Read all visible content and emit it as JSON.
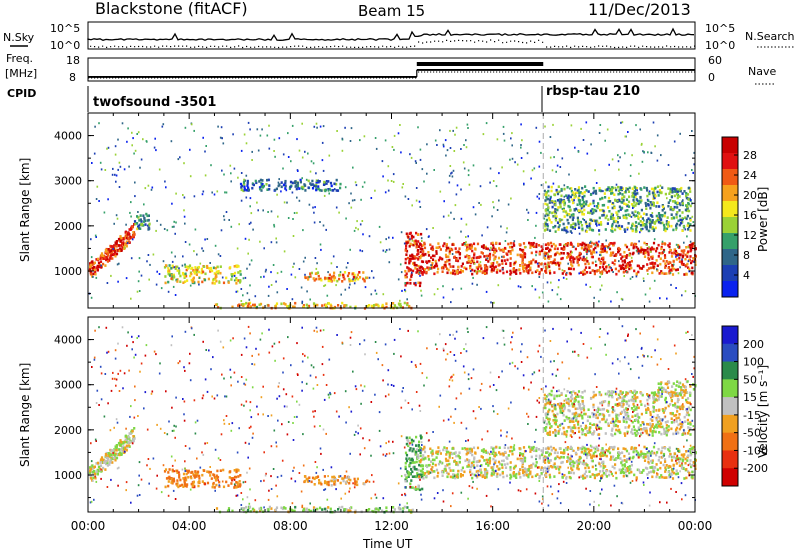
{
  "header": {
    "station": "Blackstone (fitACF)",
    "beam": "Beam 15",
    "date": "11/Dec/2013"
  },
  "params": {
    "nsky_label": "N.Sky",
    "nsky_ticks": [
      "10^5",
      "10^0"
    ],
    "nsearch_label": "N.Search",
    "nsearch_ticks": [
      "10^5",
      "10^0"
    ],
    "freq_label_top": "Freq.",
    "freq_label_unit": "[MHz]",
    "freq_ticks": [
      "18",
      "8"
    ],
    "nave_label": "Nave",
    "nave_ticks": [
      "60",
      "0"
    ],
    "cpid_label": "CPID",
    "cpid_segments": [
      {
        "name": "twofsound -3501",
        "start_hour": 0
      },
      {
        "name": "rbsp-tau 210",
        "start_hour": 18
      }
    ],
    "freq_segments": [
      {
        "start_hour": 0,
        "end_hour": 13,
        "mhz": 10.4
      },
      {
        "start_hour": 13,
        "end_hour": 24,
        "mhz": 14.5
      }
    ]
  },
  "chart_data": [
    {
      "type": "heatmap",
      "name": "power-panel",
      "ylabel": "Slant Range [km]",
      "xlim": [
        0,
        24
      ],
      "ylim": [
        180,
        4500
      ],
      "yticks": [
        "1000",
        "2000",
        "3000",
        "4000"
      ],
      "colorbar": {
        "label": "Power [dB]",
        "ticks": [
          "4",
          "8",
          "12",
          "16",
          "20",
          "24",
          "28"
        ],
        "colors": [
          "#0a22ee",
          "#1c3fb3",
          "#2f6688",
          "#35a06a",
          "#9ad236",
          "#f4e81c",
          "#f6a11d",
          "#f05a15",
          "#e01010",
          "#c80000"
        ]
      },
      "echo_regions": [
        {
          "from_hour": 0.0,
          "to_hour": 1.8,
          "range_start_km": 1000,
          "range_end_km": 1900,
          "level": 0.85
        },
        {
          "from_hour": 1.8,
          "to_hour": 2.4,
          "range_start_km": 1950,
          "range_end_km": 2300,
          "level": 0.3
        },
        {
          "from_hour": 3.0,
          "to_hour": 6.0,
          "range_start_km": 750,
          "range_end_km": 1150,
          "level": 0.55
        },
        {
          "from_hour": 8.5,
          "to_hour": 11.0,
          "range_start_km": 800,
          "range_end_km": 1000,
          "level": 0.65
        },
        {
          "from_hour": 12.5,
          "to_hour": 13.2,
          "range_start_km": 700,
          "range_end_km": 1900,
          "level": 0.9
        },
        {
          "from_hour": 13.0,
          "to_hour": 24.0,
          "range_start_km": 950,
          "range_end_km": 1650,
          "level": 0.85
        },
        {
          "from_hour": 5.0,
          "to_hour": 13.0,
          "range_start_km": 200,
          "range_end_km": 320,
          "level": 0.6
        },
        {
          "from_hour": 6.0,
          "to_hour": 10.0,
          "range_start_km": 2800,
          "range_end_km": 3050,
          "level": 0.2
        },
        {
          "from_hour": 18.0,
          "to_hour": 23.8,
          "range_start_km": 1900,
          "range_end_km": 2900,
          "level": 0.35
        }
      ]
    },
    {
      "type": "heatmap",
      "name": "velocity-panel",
      "xlabel": "Time UT",
      "ylabel": "Slant Range [km]",
      "xlim": [
        0,
        24
      ],
      "ylim": [
        180,
        4500
      ],
      "xticks": [
        "00:00",
        "04:00",
        "08:00",
        "12:00",
        "16:00",
        "20:00",
        "00:00"
      ],
      "yticks": [
        "1000",
        "2000",
        "3000",
        "4000"
      ],
      "colorbar": {
        "label": "Velocity [m s⁻¹]",
        "ticks": [
          "200",
          "100",
          "50",
          "15",
          "-15",
          "-50",
          "-100",
          "-200"
        ],
        "colors": [
          "#1a1ad0",
          "#2a4cc0",
          "#2a8a4a",
          "#7ed844",
          "#c0c0c0",
          "#f0a020",
          "#f07014",
          "#e83010",
          "#d00000"
        ]
      },
      "echo_regions": [
        {
          "from_hour": 0.0,
          "to_hour": 1.8,
          "range_start_km": 1000,
          "range_end_km": 1900,
          "velocity": 0
        },
        {
          "from_hour": 3.0,
          "to_hour": 6.0,
          "range_start_km": 750,
          "range_end_km": 1150,
          "velocity": -60
        },
        {
          "from_hour": 8.5,
          "to_hour": 11.0,
          "range_start_km": 800,
          "range_end_km": 1000,
          "velocity": -40
        },
        {
          "from_hour": 12.5,
          "to_hour": 13.2,
          "range_start_km": 700,
          "range_end_km": 1900,
          "velocity": 40
        },
        {
          "from_hour": 13.0,
          "to_hour": 24.0,
          "range_start_km": 950,
          "range_end_km": 1650,
          "velocity": 0
        },
        {
          "from_hour": 5.0,
          "to_hour": 13.0,
          "range_start_km": 200,
          "range_end_km": 320,
          "velocity": 20
        },
        {
          "from_hour": 18.0,
          "to_hour": 23.8,
          "range_start_km": 1900,
          "range_end_km": 2900,
          "velocity": 0
        },
        {
          "from_hour": 22.5,
          "to_hour": 24.0,
          "range_start_km": 2800,
          "range_end_km": 3100,
          "velocity": 0
        }
      ]
    }
  ]
}
